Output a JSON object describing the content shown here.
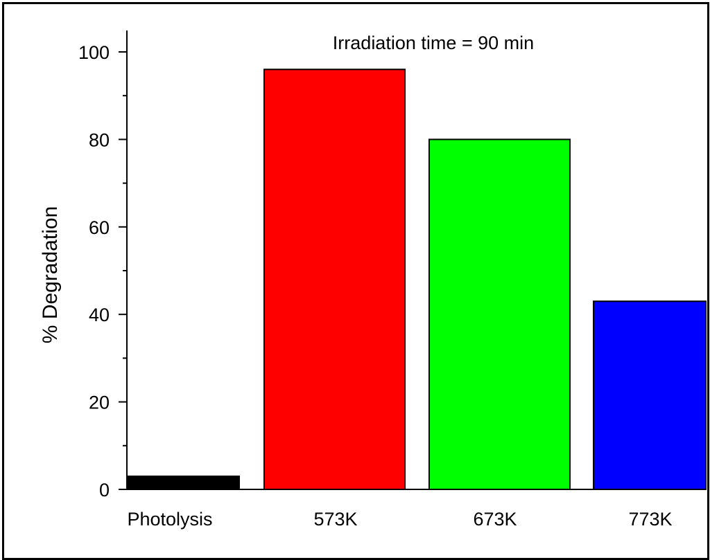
{
  "chart_data": {
    "type": "bar",
    "title": "Irradiation time = 90 min",
    "ylabel": "% Degradation",
    "xlabel": "",
    "categories": [
      "Photolysis",
      "573K",
      "673K",
      "773K"
    ],
    "values": [
      3,
      96,
      80,
      43
    ],
    "colors": [
      "#000000",
      "#ff0000",
      "#00ff00",
      "#0000ff"
    ],
    "ylim": [
      0,
      100
    ],
    "yticks": [
      0,
      20,
      40,
      60,
      80,
      100
    ],
    "grid": false,
    "legend": "none"
  }
}
